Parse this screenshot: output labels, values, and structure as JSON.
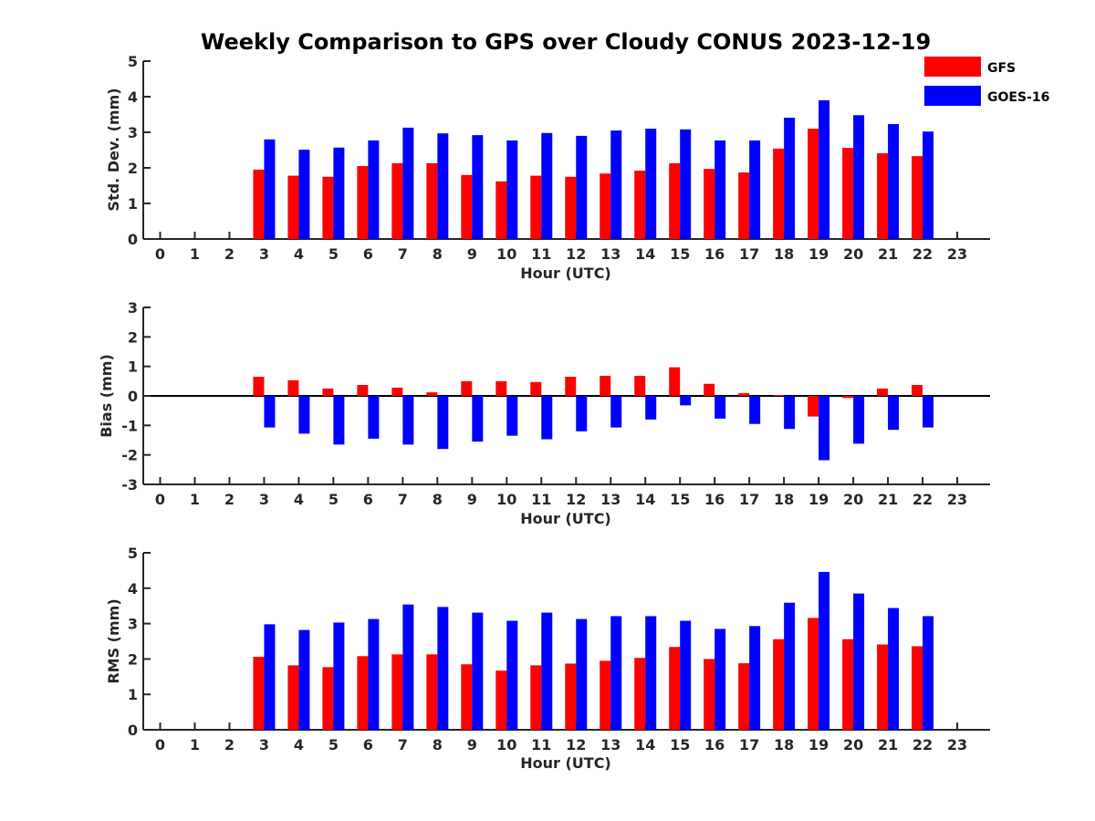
{
  "title": "Weekly Comparison to GPS over Cloudy CONUS 2023-12-19",
  "colors": {
    "GFS": "#ff0000",
    "GOES-16": "#0000ff"
  },
  "legend": {
    "placement": "top-right",
    "entries": [
      "GFS",
      "GOES-16"
    ]
  },
  "chart_data": [
    {
      "type": "bar",
      "ylabel": "Std. Dev. (mm)",
      "xlabel": "Hour (UTC)",
      "ylim": [
        0,
        5
      ],
      "yticks": [
        0,
        1,
        2,
        3,
        4,
        5
      ],
      "categories": [
        "0",
        "1",
        "2",
        "3",
        "4",
        "5",
        "6",
        "7",
        "8",
        "9",
        "10",
        "11",
        "12",
        "13",
        "14",
        "15",
        "16",
        "17",
        "18",
        "19",
        "20",
        "21",
        "22",
        "23"
      ],
      "series": [
        {
          "name": "GFS",
          "values": [
            null,
            null,
            null,
            1.95,
            1.78,
            1.75,
            2.05,
            2.13,
            2.13,
            1.8,
            1.62,
            1.78,
            1.75,
            1.84,
            1.92,
            2.13,
            1.97,
            1.87,
            2.54,
            3.1,
            2.56,
            2.41,
            2.33,
            null
          ]
        },
        {
          "name": "GOES-16",
          "values": [
            null,
            null,
            null,
            2.8,
            2.51,
            2.57,
            2.77,
            3.13,
            2.97,
            2.92,
            2.77,
            2.98,
            2.9,
            3.05,
            3.1,
            3.08,
            2.77,
            2.77,
            3.41,
            3.9,
            3.48,
            3.23,
            3.02,
            null
          ]
        }
      ]
    },
    {
      "type": "bar",
      "ylabel": "Bias (mm)",
      "xlabel": "Hour (UTC)",
      "ylim": [
        -3,
        3
      ],
      "yticks": [
        -3,
        -2,
        -1,
        0,
        1,
        2,
        3
      ],
      "zero_line": true,
      "categories": [
        "0",
        "1",
        "2",
        "3",
        "4",
        "5",
        "6",
        "7",
        "8",
        "9",
        "10",
        "11",
        "12",
        "13",
        "14",
        "15",
        "16",
        "17",
        "18",
        "19",
        "20",
        "21",
        "22",
        "23"
      ],
      "series": [
        {
          "name": "GFS",
          "values": [
            null,
            null,
            null,
            0.65,
            0.53,
            0.25,
            0.37,
            0.28,
            0.12,
            0.5,
            0.5,
            0.47,
            0.65,
            0.68,
            0.68,
            0.97,
            0.41,
            0.09,
            0.03,
            -0.7,
            -0.07,
            0.25,
            0.37,
            null
          ]
        },
        {
          "name": "GOES-16",
          "values": [
            null,
            null,
            null,
            -1.07,
            -1.28,
            -1.65,
            -1.45,
            -1.65,
            -1.8,
            -1.55,
            -1.35,
            -1.47,
            -1.2,
            -1.07,
            -0.8,
            -0.32,
            -0.77,
            -0.95,
            -1.12,
            -2.18,
            -1.62,
            -1.15,
            -1.07,
            null
          ]
        }
      ]
    },
    {
      "type": "bar",
      "ylabel": "RMS (mm)",
      "xlabel": "Hour (UTC)",
      "ylim": [
        0,
        5
      ],
      "yticks": [
        0,
        1,
        2,
        3,
        4,
        5
      ],
      "categories": [
        "0",
        "1",
        "2",
        "3",
        "4",
        "5",
        "6",
        "7",
        "8",
        "9",
        "10",
        "11",
        "12",
        "13",
        "14",
        "15",
        "16",
        "17",
        "18",
        "19",
        "20",
        "21",
        "22",
        "23"
      ],
      "series": [
        {
          "name": "GFS",
          "values": [
            null,
            null,
            null,
            2.06,
            1.82,
            1.77,
            2.08,
            2.13,
            2.13,
            1.85,
            1.67,
            1.82,
            1.87,
            1.95,
            2.03,
            2.34,
            2.0,
            1.88,
            2.56,
            3.16,
            2.56,
            2.41,
            2.36,
            null
          ]
        },
        {
          "name": "GOES-16",
          "values": [
            null,
            null,
            null,
            2.98,
            2.82,
            3.03,
            3.13,
            3.54,
            3.47,
            3.31,
            3.08,
            3.31,
            3.13,
            3.21,
            3.21,
            3.08,
            2.85,
            2.93,
            3.59,
            4.46,
            3.85,
            3.44,
            3.21,
            null
          ]
        }
      ]
    }
  ]
}
